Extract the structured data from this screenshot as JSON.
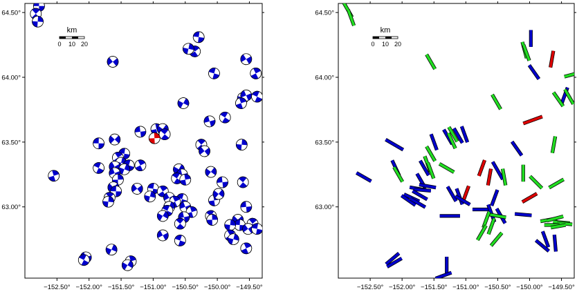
{
  "panels": [
    {
      "id": "left",
      "kind": "focal-mechanism-map",
      "lon_range": [
        -153.0,
        -149.3
      ],
      "lat_range": [
        62.45,
        64.57
      ],
      "x_ticks": [
        {
          "value": -152.5,
          "label": "−152.50°"
        },
        {
          "value": -152.0,
          "label": "−152.00°"
        },
        {
          "value": -151.5,
          "label": "−151.50°"
        },
        {
          "value": -151.0,
          "label": "−151.00°"
        },
        {
          "value": -150.5,
          "label": "−150.50°"
        },
        {
          "value": -150.0,
          "label": "−150.00°"
        },
        {
          "value": -149.5,
          "label": "−149.50°"
        }
      ],
      "y_ticks": [
        {
          "value": 64.5,
          "label": "64.50°"
        },
        {
          "value": 64.0,
          "label": "64.00°"
        },
        {
          "value": 63.5,
          "label": "63.50°"
        },
        {
          "value": 63.0,
          "label": "63.00°"
        }
      ],
      "scale_bar": {
        "title": "km",
        "ticks": [
          "0",
          "10",
          "20"
        ]
      },
      "colors": {
        "mechanism": "#0000cc",
        "highlight": "#dd0000"
      },
      "mechanisms": [
        {
          "lon": -152.78,
          "lat": 64.55
        },
        {
          "lon": -152.83,
          "lat": 64.49
        },
        {
          "lon": -152.8,
          "lat": 64.43
        },
        {
          "lon": -151.63,
          "lat": 64.12
        },
        {
          "lon": -150.29,
          "lat": 64.31
        },
        {
          "lon": -150.35,
          "lat": 64.2
        },
        {
          "lon": -150.45,
          "lat": 64.22
        },
        {
          "lon": -149.55,
          "lat": 64.14
        },
        {
          "lon": -150.05,
          "lat": 64.03
        },
        {
          "lon": -149.4,
          "lat": 64.03
        },
        {
          "lon": -149.6,
          "lat": 63.84
        },
        {
          "lon": -149.55,
          "lat": 63.86
        },
        {
          "lon": -149.38,
          "lat": 63.85
        },
        {
          "lon": -149.63,
          "lat": 63.8
        },
        {
          "lon": -150.53,
          "lat": 63.8
        },
        {
          "lon": -150.12,
          "lat": 63.66
        },
        {
          "lon": -149.88,
          "lat": 63.69
        },
        {
          "lon": -150.95,
          "lat": 63.6
        },
        {
          "lon": -150.85,
          "lat": 63.6
        },
        {
          "lon": -151.2,
          "lat": 63.58
        },
        {
          "lon": -150.82,
          "lat": 63.56
        },
        {
          "lon": -150.98,
          "lat": 63.53,
          "highlight": true
        },
        {
          "lon": -151.6,
          "lat": 63.52
        },
        {
          "lon": -151.85,
          "lat": 63.49
        },
        {
          "lon": -150.25,
          "lat": 63.48
        },
        {
          "lon": -149.62,
          "lat": 63.48
        },
        {
          "lon": -150.2,
          "lat": 63.43
        },
        {
          "lon": -151.45,
          "lat": 63.41
        },
        {
          "lon": -151.55,
          "lat": 63.38
        },
        {
          "lon": -151.5,
          "lat": 63.34
        },
        {
          "lon": -151.6,
          "lat": 63.31
        },
        {
          "lon": -151.38,
          "lat": 63.32
        },
        {
          "lon": -151.2,
          "lat": 63.32
        },
        {
          "lon": -151.45,
          "lat": 63.29
        },
        {
          "lon": -151.6,
          "lat": 63.26
        },
        {
          "lon": -151.85,
          "lat": 63.3
        },
        {
          "lon": -152.55,
          "lat": 63.24
        },
        {
          "lon": -150.6,
          "lat": 63.29
        },
        {
          "lon": -150.55,
          "lat": 63.25
        },
        {
          "lon": -150.63,
          "lat": 63.22
        },
        {
          "lon": -150.5,
          "lat": 63.21
        },
        {
          "lon": -150.1,
          "lat": 63.27
        },
        {
          "lon": -149.92,
          "lat": 63.19
        },
        {
          "lon": -149.6,
          "lat": 63.19
        },
        {
          "lon": -151.55,
          "lat": 63.21
        },
        {
          "lon": -151.62,
          "lat": 63.15
        },
        {
          "lon": -151.58,
          "lat": 63.12
        },
        {
          "lon": -151.68,
          "lat": 63.07
        },
        {
          "lon": -151.7,
          "lat": 63.04
        },
        {
          "lon": -151.25,
          "lat": 63.14
        },
        {
          "lon": -151.0,
          "lat": 63.14
        },
        {
          "lon": -150.85,
          "lat": 63.12
        },
        {
          "lon": -151.05,
          "lat": 63.08
        },
        {
          "lon": -150.75,
          "lat": 63.07
        },
        {
          "lon": -150.55,
          "lat": 63.06
        },
        {
          "lon": -150.66,
          "lat": 63.04
        },
        {
          "lon": -150.75,
          "lat": 63.0
        },
        {
          "lon": -150.5,
          "lat": 63.0
        },
        {
          "lon": -150.78,
          "lat": 62.97
        },
        {
          "lon": -150.4,
          "lat": 62.96
        },
        {
          "lon": -150.85,
          "lat": 62.93
        },
        {
          "lon": -150.52,
          "lat": 62.92
        },
        {
          "lon": -150.1,
          "lat": 62.93
        },
        {
          "lon": -150.05,
          "lat": 63.05
        },
        {
          "lon": -149.98,
          "lat": 63.1
        },
        {
          "lon": -149.55,
          "lat": 63.0
        },
        {
          "lon": -150.58,
          "lat": 62.87
        },
        {
          "lon": -150.08,
          "lat": 62.9
        },
        {
          "lon": -149.68,
          "lat": 62.9
        },
        {
          "lon": -149.65,
          "lat": 62.86
        },
        {
          "lon": -149.45,
          "lat": 62.87
        },
        {
          "lon": -149.8,
          "lat": 62.86
        },
        {
          "lon": -149.52,
          "lat": 62.83
        },
        {
          "lon": -149.38,
          "lat": 62.83
        },
        {
          "lon": -149.8,
          "lat": 62.78
        },
        {
          "lon": -149.75,
          "lat": 62.75
        },
        {
          "lon": -150.85,
          "lat": 62.78
        },
        {
          "lon": -150.58,
          "lat": 62.74
        },
        {
          "lon": -149.55,
          "lat": 62.68
        },
        {
          "lon": -151.65,
          "lat": 62.67
        },
        {
          "lon": -152.05,
          "lat": 62.61
        },
        {
          "lon": -152.08,
          "lat": 62.59
        },
        {
          "lon": -151.35,
          "lat": 62.58
        },
        {
          "lon": -151.4,
          "lat": 62.55
        }
      ]
    },
    {
      "id": "right",
      "kind": "axis-orientation-map",
      "lon_range": [
        -153.0,
        -149.3
      ],
      "lat_range": [
        62.45,
        64.57
      ],
      "x_ticks": [
        {
          "value": -152.5,
          "label": "−152.50°"
        },
        {
          "value": -152.0,
          "label": "−152.00°"
        },
        {
          "value": -151.5,
          "label": "−151.50°"
        },
        {
          "value": -151.0,
          "label": "−151.00°"
        },
        {
          "value": -150.5,
          "label": "−150.50°"
        },
        {
          "value": -150.0,
          "label": "−150.00°"
        },
        {
          "value": -149.5,
          "label": "−149.50°"
        }
      ],
      "y_ticks": [
        {
          "value": 64.5,
          "label": "64.50°"
        },
        {
          "value": 64.0,
          "label": "64.00°"
        },
        {
          "value": 63.5,
          "label": "63.50°"
        },
        {
          "value": 63.0,
          "label": "63.00°"
        }
      ],
      "scale_bar": {
        "title": "km",
        "ticks": [
          "0",
          "10",
          "20"
        ]
      },
      "colors": {
        "blue": "#0000cc",
        "green": "#22dd22",
        "red": "#dd0000"
      },
      "bars": [
        {
          "lon": -152.85,
          "lat": 64.52,
          "az": 150,
          "len": 0.1,
          "color": "green"
        },
        {
          "lon": -152.8,
          "lat": 64.46,
          "az": 160,
          "len": 0.1,
          "color": "green"
        },
        {
          "lon": -151.55,
          "lat": 64.12,
          "az": 150,
          "len": 0.1,
          "color": "green"
        },
        {
          "lon": -149.98,
          "lat": 64.3,
          "az": 0,
          "len": 0.1,
          "color": "blue"
        },
        {
          "lon": -150.08,
          "lat": 64.21,
          "az": 165,
          "len": 0.1,
          "color": "green"
        },
        {
          "lon": -150.05,
          "lat": 64.19,
          "az": 160,
          "len": 0.1,
          "color": "green"
        },
        {
          "lon": -149.65,
          "lat": 64.14,
          "az": 10,
          "len": 0.1,
          "color": "red"
        },
        {
          "lon": -149.93,
          "lat": 64.04,
          "az": 145,
          "len": 0.1,
          "color": "blue"
        },
        {
          "lon": -149.34,
          "lat": 64.02,
          "az": 75,
          "len": 0.09,
          "color": "green"
        },
        {
          "lon": -149.45,
          "lat": 63.86,
          "az": 20,
          "len": 0.1,
          "color": "blue"
        },
        {
          "lon": -149.55,
          "lat": 63.83,
          "az": 145,
          "len": 0.1,
          "color": "green"
        },
        {
          "lon": -149.38,
          "lat": 63.85,
          "az": 150,
          "len": 0.1,
          "color": "green"
        },
        {
          "lon": -150.52,
          "lat": 63.81,
          "az": 150,
          "len": 0.1,
          "color": "green"
        },
        {
          "lon": -149.95,
          "lat": 63.67,
          "az": 70,
          "len": 0.12,
          "color": "red"
        },
        {
          "lon": -151.28,
          "lat": 63.54,
          "az": 150,
          "len": 0.1,
          "color": "blue"
        },
        {
          "lon": -151.2,
          "lat": 63.56,
          "az": 150,
          "len": 0.1,
          "color": "green"
        },
        {
          "lon": -151.12,
          "lat": 63.55,
          "az": 150,
          "len": 0.1,
          "color": "blue"
        },
        {
          "lon": -151.02,
          "lat": 63.56,
          "az": 160,
          "len": 0.1,
          "color": "blue"
        },
        {
          "lon": -151.22,
          "lat": 63.51,
          "az": 155,
          "len": 0.1,
          "color": "green"
        },
        {
          "lon": -151.5,
          "lat": 63.5,
          "az": 160,
          "len": 0.1,
          "color": "blue"
        },
        {
          "lon": -152.12,
          "lat": 63.48,
          "az": 120,
          "len": 0.12,
          "color": "blue"
        },
        {
          "lon": -150.2,
          "lat": 63.45,
          "az": 145,
          "len": 0.1,
          "color": "blue"
        },
        {
          "lon": -149.62,
          "lat": 63.48,
          "az": 10,
          "len": 0.1,
          "color": "green"
        },
        {
          "lon": -151.55,
          "lat": 63.41,
          "az": 150,
          "len": 0.1,
          "color": "green"
        },
        {
          "lon": -151.3,
          "lat": 63.3,
          "az": 120,
          "len": 0.1,
          "color": "green"
        },
        {
          "lon": -151.6,
          "lat": 63.33,
          "az": 160,
          "len": 0.1,
          "color": "green"
        },
        {
          "lon": -151.65,
          "lat": 63.3,
          "az": 150,
          "len": 0.1,
          "color": "blue"
        },
        {
          "lon": -151.55,
          "lat": 63.28,
          "az": 160,
          "len": 0.1,
          "color": "green"
        },
        {
          "lon": -152.1,
          "lat": 63.3,
          "az": 155,
          "len": 0.1,
          "color": "blue"
        },
        {
          "lon": -152.06,
          "lat": 63.25,
          "az": 150,
          "len": 0.1,
          "color": "green"
        },
        {
          "lon": -152.6,
          "lat": 63.23,
          "az": 120,
          "len": 0.1,
          "color": "blue"
        },
        {
          "lon": -151.7,
          "lat": 63.2,
          "az": 150,
          "len": 0.1,
          "color": "blue"
        },
        {
          "lon": -151.6,
          "lat": 63.16,
          "az": 100,
          "len": 0.1,
          "color": "blue"
        },
        {
          "lon": -151.75,
          "lat": 63.14,
          "az": 100,
          "len": 0.1,
          "color": "blue"
        },
        {
          "lon": -151.68,
          "lat": 63.13,
          "az": 95,
          "len": 0.1,
          "color": "blue"
        },
        {
          "lon": -151.72,
          "lat": 63.09,
          "az": 120,
          "len": 0.1,
          "color": "blue"
        },
        {
          "lon": -151.85,
          "lat": 63.07,
          "az": 115,
          "len": 0.1,
          "color": "blue"
        },
        {
          "lon": -151.9,
          "lat": 63.05,
          "az": 125,
          "len": 0.1,
          "color": "blue"
        },
        {
          "lon": -151.75,
          "lat": 63.03,
          "az": 120,
          "len": 0.1,
          "color": "blue"
        },
        {
          "lon": -150.75,
          "lat": 63.3,
          "az": 20,
          "len": 0.1,
          "color": "red"
        },
        {
          "lon": -150.63,
          "lat": 63.23,
          "az": 10,
          "len": 0.1,
          "color": "red"
        },
        {
          "lon": -151.0,
          "lat": 63.1,
          "az": 20,
          "len": 0.1,
          "color": "red"
        },
        {
          "lon": -150.0,
          "lat": 63.07,
          "az": 60,
          "len": 0.1,
          "color": "red"
        },
        {
          "lon": -150.5,
          "lat": 63.28,
          "az": 150,
          "len": 0.12,
          "color": "blue"
        },
        {
          "lon": -150.4,
          "lat": 63.23,
          "az": 170,
          "len": 0.1,
          "color": "green"
        },
        {
          "lon": -150.1,
          "lat": 63.26,
          "az": 0,
          "len": 0.1,
          "color": "green"
        },
        {
          "lon": -149.9,
          "lat": 63.19,
          "az": 135,
          "len": 0.1,
          "color": "green"
        },
        {
          "lon": -149.58,
          "lat": 63.18,
          "az": 60,
          "len": 0.1,
          "color": "green"
        },
        {
          "lon": -151.22,
          "lat": 63.1,
          "az": 150,
          "len": 0.1,
          "color": "blue"
        },
        {
          "lon": -151.1,
          "lat": 63.08,
          "az": 160,
          "len": 0.1,
          "color": "blue"
        },
        {
          "lon": -151.05,
          "lat": 63.05,
          "az": 120,
          "len": 0.1,
          "color": "blue"
        },
        {
          "lon": -150.55,
          "lat": 63.07,
          "az": 20,
          "len": 0.1,
          "color": "blue"
        },
        {
          "lon": -150.45,
          "lat": 62.93,
          "az": 150,
          "len": 0.1,
          "color": "blue"
        },
        {
          "lon": -150.75,
          "lat": 62.98,
          "az": 90,
          "len": 0.11,
          "color": "blue"
        },
        {
          "lon": -150.6,
          "lat": 62.95,
          "az": 160,
          "len": 0.11,
          "color": "blue"
        },
        {
          "lon": -150.5,
          "lat": 62.93,
          "az": 100,
          "len": 0.1,
          "color": "green"
        },
        {
          "lon": -151.25,
          "lat": 62.93,
          "az": 90,
          "len": 0.12,
          "color": "blue"
        },
        {
          "lon": -150.68,
          "lat": 62.9,
          "az": 20,
          "len": 0.1,
          "color": "green"
        },
        {
          "lon": -150.6,
          "lat": 62.85,
          "az": 20,
          "len": 0.1,
          "color": "green"
        },
        {
          "lon": -150.75,
          "lat": 62.8,
          "az": 30,
          "len": 0.1,
          "color": "green"
        },
        {
          "lon": -150.52,
          "lat": 62.75,
          "az": 40,
          "len": 0.1,
          "color": "green"
        },
        {
          "lon": -150.1,
          "lat": 62.94,
          "az": 95,
          "len": 0.1,
          "color": "blue"
        },
        {
          "lon": -149.7,
          "lat": 62.9,
          "az": 80,
          "len": 0.1,
          "color": "green"
        },
        {
          "lon": -149.6,
          "lat": 62.91,
          "az": 75,
          "len": 0.1,
          "color": "green"
        },
        {
          "lon": -149.5,
          "lat": 62.88,
          "az": 95,
          "len": 0.1,
          "color": "green"
        },
        {
          "lon": -149.45,
          "lat": 62.87,
          "az": 95,
          "len": 0.09,
          "color": "green"
        },
        {
          "lon": -149.65,
          "lat": 62.86,
          "az": 90,
          "len": 0.09,
          "color": "green"
        },
        {
          "lon": -149.55,
          "lat": 62.85,
          "az": 80,
          "len": 0.09,
          "color": "green"
        },
        {
          "lon": -149.75,
          "lat": 62.75,
          "az": 160,
          "len": 0.1,
          "color": "blue"
        },
        {
          "lon": -149.6,
          "lat": 62.72,
          "az": 175,
          "len": 0.1,
          "color": "blue"
        },
        {
          "lon": -149.8,
          "lat": 62.7,
          "az": 130,
          "len": 0.1,
          "color": "blue"
        },
        {
          "lon": -152.15,
          "lat": 62.6,
          "az": 50,
          "len": 0.1,
          "color": "blue"
        },
        {
          "lon": -152.12,
          "lat": 62.57,
          "az": 60,
          "len": 0.1,
          "color": "blue"
        },
        {
          "lon": -151.3,
          "lat": 62.55,
          "az": 0,
          "len": 0.1,
          "color": "blue"
        },
        {
          "lon": -151.35,
          "lat": 62.47,
          "az": 70,
          "len": 0.1,
          "color": "blue"
        }
      ]
    }
  ]
}
